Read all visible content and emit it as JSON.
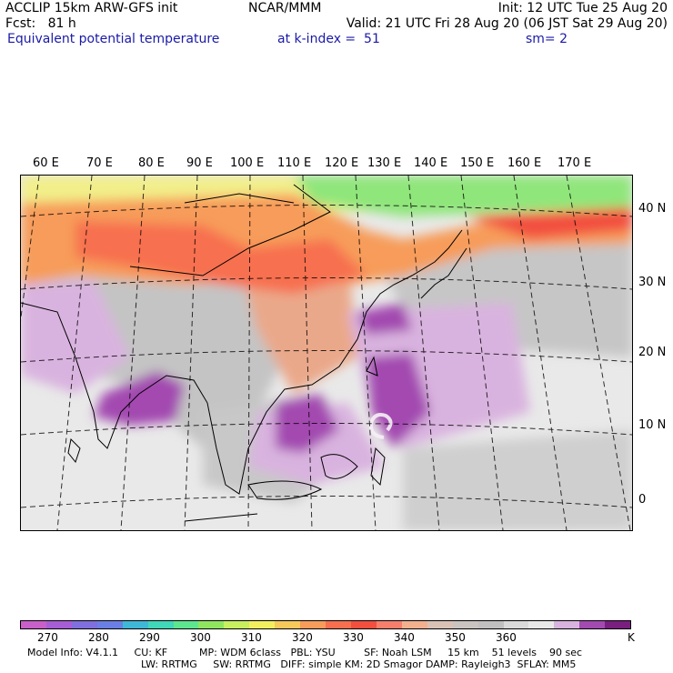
{
  "header": {
    "line1_left": "ACCLIP 15km ARW-GFS init",
    "line1_center": "NCAR/MMM",
    "line1_right": "Init: 12 UTC Tue 25 Aug 20",
    "line2_left": "Fcst:   81 h",
    "line2_right": "Valid: 21 UTC Fri 28 Aug 20 (06 JST Sat 29 Aug 20)",
    "line3_left": "Equivalent potential temperature",
    "line3_center": "at k-index =  51",
    "line3_right": "sm= 2"
  },
  "map": {
    "lon_labels": [
      "60 E",
      "70 E",
      "80 E",
      "90 E",
      "100 E",
      "110 E",
      "120 E",
      "130 E",
      "140 E",
      "150 E",
      "160 E",
      "170 E"
    ],
    "lat_labels": [
      "40 N",
      "30 N",
      "20 N",
      "10 N",
      "0"
    ]
  },
  "colorbar": {
    "colors": [
      "#c95fc9",
      "#a65ed6",
      "#7f6fdf",
      "#6a7fe6",
      "#3fb8d8",
      "#3fd8b8",
      "#5ee68f",
      "#8fe65e",
      "#c7ef5e",
      "#f2ef5e",
      "#f7c95a",
      "#f79c5a",
      "#f76f4f",
      "#f24f3f",
      "#f77e6b",
      "#f2b08f",
      "#d9c2b5",
      "#c9c4c0",
      "#c0c0c0",
      "#d9d9d9",
      "#e8e8e8",
      "#d9b3df",
      "#a34ab0",
      "#7a1f80"
    ],
    "ticks": [
      "270",
      "280",
      "290",
      "300",
      "310",
      "320",
      "330",
      "340",
      "350",
      "360"
    ],
    "unit": "K"
  },
  "footer": {
    "line1": "Model Info: V4.1.1     CU: KF          MP: WDM 6class   PBL: YSU         SF: Noah LSM     15 km    51 levels    90 sec",
    "line2": "LW: RRTMG     SW: RRTMG   DIFF: simple KM: 2D Smagor DAMP: Rayleigh3  SFLAY: MM5"
  }
}
